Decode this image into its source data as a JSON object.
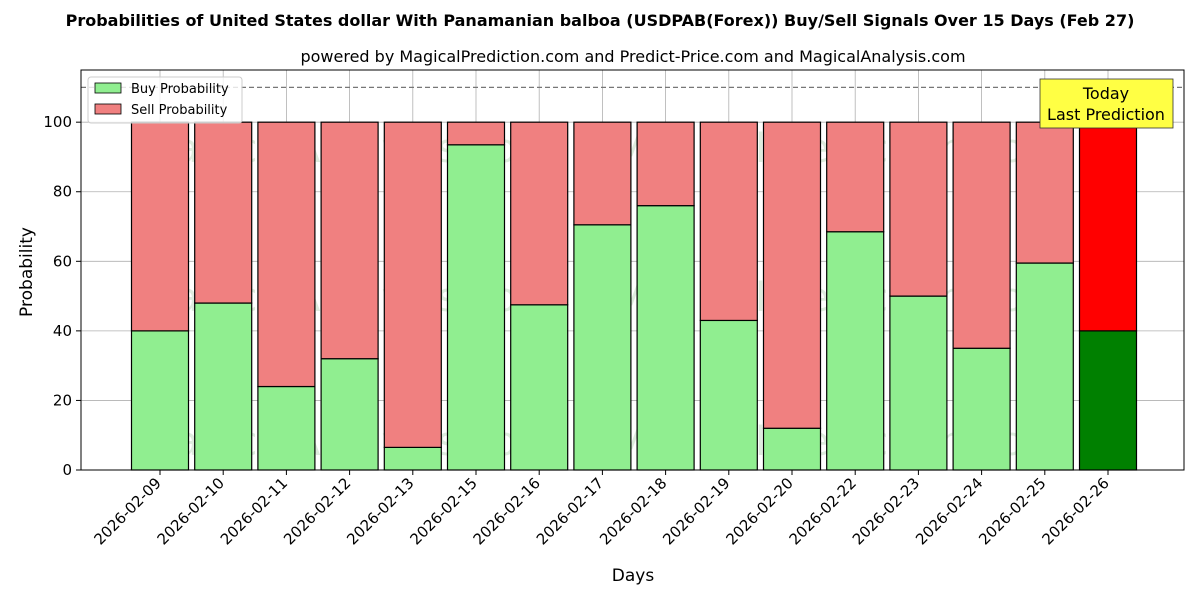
{
  "chart_data": {
    "type": "bar",
    "stacked": true,
    "title": "Probabilities of United States dollar With Panamanian balboa (USDPAB(Forex)) Buy/Sell Signals Over 15 Days (Feb 27)",
    "subtitle": "powered by MagicalPrediction.com and Predict-Price.com and MagicalAnalysis.com",
    "xlabel": "Days",
    "ylabel": "Probability",
    "ylim": [
      0,
      115
    ],
    "yticks": [
      0,
      20,
      40,
      60,
      80,
      100
    ],
    "reference_line": 110,
    "grid": true,
    "legend_position": "top-left",
    "categories": [
      "2026-02-09",
      "2026-02-10",
      "2026-02-11",
      "2026-02-12",
      "2026-02-13",
      "2026-02-15",
      "2026-02-16",
      "2026-02-17",
      "2026-02-18",
      "2026-02-19",
      "2026-02-20",
      "2026-02-22",
      "2026-02-23",
      "2026-02-24",
      "2026-02-25",
      "2026-02-26"
    ],
    "series": [
      {
        "name": "Buy Probability",
        "color": "#90ee90",
        "highlight_color": "#008000",
        "values": [
          40,
          48,
          24,
          32,
          6.5,
          93.5,
          47.5,
          70.5,
          76,
          43,
          12,
          68.5,
          50,
          35,
          59.5,
          40
        ]
      },
      {
        "name": "Sell Probability",
        "color": "#f08080",
        "highlight_color": "#ff0000",
        "values": [
          60,
          52,
          76,
          68,
          93.5,
          6.5,
          52.5,
          29.5,
          24,
          57,
          88,
          31.5,
          50,
          65,
          40.5,
          60
        ]
      }
    ],
    "highlight_index": 15,
    "annotation": {
      "text_lines": [
        "Today",
        "Last Prediction"
      ],
      "bg_color": "#ffff44"
    },
    "watermarks": [
      "MagicalAnalysis.com",
      "MagicalPrediction.com"
    ]
  }
}
